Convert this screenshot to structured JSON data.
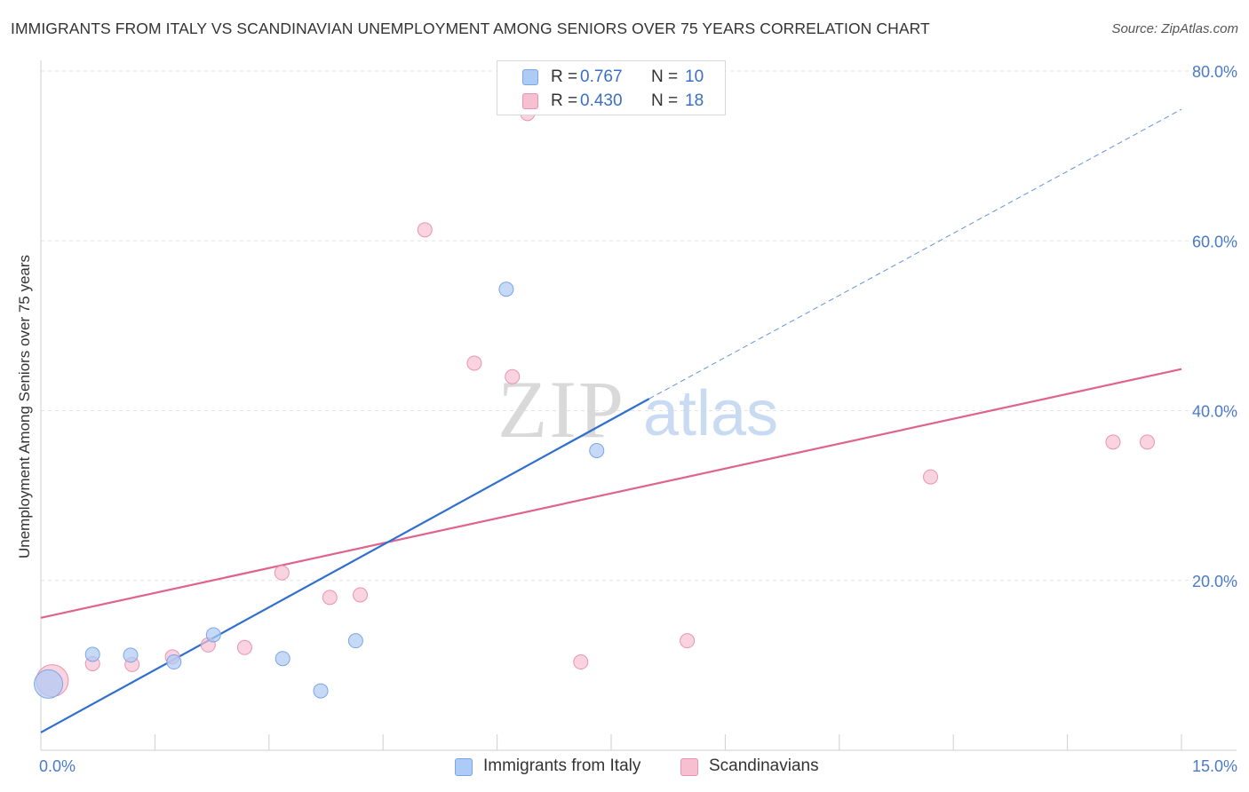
{
  "header": {
    "title": "IMMIGRANTS FROM ITALY VS SCANDINAVIAN UNEMPLOYMENT AMONG SENIORS OVER 75 YEARS CORRELATION CHART",
    "source": "Source: ZipAtlas.com"
  },
  "watermark": {
    "zip": "ZIP",
    "atlas": "atlas"
  },
  "legend": {
    "r_label": "R =",
    "n_label": "N =",
    "series": [
      {
        "name": "Immigrants from Italy",
        "r": "0.767",
        "n": "10",
        "color": "#aecbf5",
        "stroke": "#7aa6e6"
      },
      {
        "name": "Scandinavians",
        "r": "0.430",
        "n": "18",
        "color": "#f7c0d1",
        "stroke": "#e994b0"
      }
    ]
  },
  "chart_data": {
    "type": "scatter",
    "title": "IMMIGRANTS FROM ITALY VS SCANDINAVIAN UNEMPLOYMENT AMONG SENIORS OVER 75 YEARS CORRELATION CHART",
    "xlabel": "",
    "ylabel": "Unemployment Among Seniors over 75 years",
    "xlim": [
      0,
      15
    ],
    "ylim": [
      0,
      80
    ],
    "x_tick_labels": [
      "0.0%",
      "15.0%"
    ],
    "y_ticks": [
      20,
      40,
      60,
      80
    ],
    "y_tick_labels": [
      "20.0%",
      "40.0%",
      "60.0%",
      "80.0%"
    ],
    "grid": true,
    "series": [
      {
        "name": "Immigrants from Italy",
        "color": "#aecbf5",
        "line_color": "#2f6fcf",
        "points": [
          {
            "x": 0.1,
            "y": 7.8,
            "size": 16
          },
          {
            "x": 0.68,
            "y": 11.3,
            "size": 8
          },
          {
            "x": 1.18,
            "y": 11.2,
            "size": 8
          },
          {
            "x": 1.75,
            "y": 10.4,
            "size": 8
          },
          {
            "x": 2.27,
            "y": 13.6,
            "size": 8
          },
          {
            "x": 3.18,
            "y": 10.8,
            "size": 8
          },
          {
            "x": 3.68,
            "y": 7.0,
            "size": 8
          },
          {
            "x": 4.14,
            "y": 12.9,
            "size": 8
          },
          {
            "x": 6.12,
            "y": 54.3,
            "size": 8
          },
          {
            "x": 7.31,
            "y": 35.3,
            "size": 8
          }
        ],
        "trend": {
          "x0": 0,
          "y0": 2.1,
          "x1": 8.0,
          "y1": 41.4,
          "dash_to_x": 15.0,
          "dash_to_y": 75.5
        }
      },
      {
        "name": "Scandinavians",
        "color": "#f7c0d1",
        "line_color": "#e0628f",
        "points": [
          {
            "x": 0.15,
            "y": 8.2,
            "size": 18
          },
          {
            "x": 0.68,
            "y": 10.2,
            "size": 8
          },
          {
            "x": 1.2,
            "y": 10.1,
            "size": 8
          },
          {
            "x": 1.73,
            "y": 11.0,
            "size": 8
          },
          {
            "x": 2.2,
            "y": 12.4,
            "size": 8
          },
          {
            "x": 2.68,
            "y": 12.1,
            "size": 8
          },
          {
            "x": 3.17,
            "y": 20.9,
            "size": 8
          },
          {
            "x": 3.8,
            "y": 18.0,
            "size": 8
          },
          {
            "x": 4.2,
            "y": 18.3,
            "size": 8
          },
          {
            "x": 5.05,
            "y": 61.3,
            "size": 8
          },
          {
            "x": 5.7,
            "y": 45.6,
            "size": 8
          },
          {
            "x": 6.2,
            "y": 44.0,
            "size": 8
          },
          {
            "x": 6.4,
            "y": 75.0,
            "size": 8
          },
          {
            "x": 7.1,
            "y": 10.4,
            "size": 8
          },
          {
            "x": 8.5,
            "y": 12.9,
            "size": 8
          },
          {
            "x": 11.7,
            "y": 32.2,
            "size": 8
          },
          {
            "x": 14.1,
            "y": 36.3,
            "size": 8
          },
          {
            "x": 14.55,
            "y": 36.3,
            "size": 8
          }
        ],
        "trend": {
          "x0": 0,
          "y0": 15.6,
          "x1": 15.0,
          "y1": 44.9
        }
      }
    ]
  }
}
